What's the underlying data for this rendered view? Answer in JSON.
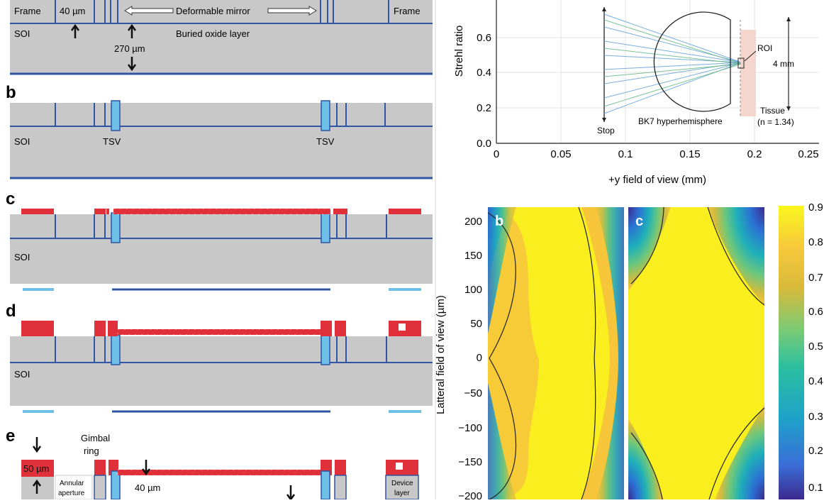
{
  "left": {
    "a": {
      "frame_left": "Frame",
      "frame_right": "Frame",
      "dim_40": "40 µm",
      "deformable_mirror": "Deformable mirror",
      "soi": "SOI",
      "buried_oxide": "Buried oxide layer",
      "dim_270": "270 µm"
    },
    "b": {
      "letter": "b",
      "soi": "SOI",
      "tsv_left": "TSV",
      "tsv_right": "TSV"
    },
    "c": {
      "letter": "c",
      "soi": "SOI"
    },
    "d": {
      "letter": "d",
      "soi": "SOI"
    },
    "e": {
      "letter": "e",
      "gimbal_ring_1": "Gimbal",
      "gimbal_ring_2": "ring",
      "dim_50": "50 µm",
      "annular_1": "Annular",
      "annular_2": "aperture",
      "dim_40": "40 µm",
      "device_1": "Device",
      "device_2": "layer"
    }
  },
  "right": {
    "strehl": {
      "ylabel": "Strehl ratio",
      "xlabel": "+y field of view (mm)",
      "xticks": [
        "0",
        "0.05",
        "0.1",
        "0.15",
        "0.2",
        "0.25"
      ],
      "yticks": [
        "0.0",
        "0.2",
        "0.4",
        "0.6"
      ],
      "inset": {
        "stop": "Stop",
        "hemisphere": "BK7 hyperhemisphere",
        "tissue": "Tissue",
        "tissue_n": "(n = 1.34)",
        "roi": "ROI",
        "size": "4 mm"
      }
    },
    "heatmaps": {
      "ylabel": "Latteral field of view (µm)",
      "yticks": [
        "200",
        "150",
        "100",
        "50",
        "0",
        "−50",
        "−100",
        "−150",
        "−200"
      ],
      "letter_b": "b",
      "letter_c": "c",
      "colorbar_ticks": [
        "0.9",
        "0.8",
        "0.7",
        "0.6",
        "0.5",
        "0.4",
        "0.3",
        "0.2",
        "0.1"
      ]
    }
  },
  "chart_data": [
    {
      "type": "line",
      "title": "",
      "xlabel": "+y field of view (mm)",
      "ylabel": "Strehl ratio",
      "xlim": [
        0,
        0.25
      ],
      "ylim": [
        0,
        0.7
      ],
      "grid": true
    },
    {
      "type": "heatmap",
      "panel": "b",
      "ylabel": "Latteral field of view (µm)",
      "ylim": [
        -200,
        215
      ],
      "colorbar_range": [
        0.05,
        0.92
      ],
      "colorbar_ticks": [
        0.1,
        0.2,
        0.3,
        0.4,
        0.5,
        0.6,
        0.7,
        0.8,
        0.9
      ]
    },
    {
      "type": "heatmap",
      "panel": "c",
      "ylim": [
        -200,
        215
      ],
      "colorbar_range": [
        0.05,
        0.92
      ]
    }
  ],
  "colors": {
    "substrate": "#c8c8c8",
    "line_blue": "#2f55a4",
    "tsv_blue": "#6fc0e8",
    "resist_red": "#e0303a",
    "viridis_high": "#fde725"
  }
}
